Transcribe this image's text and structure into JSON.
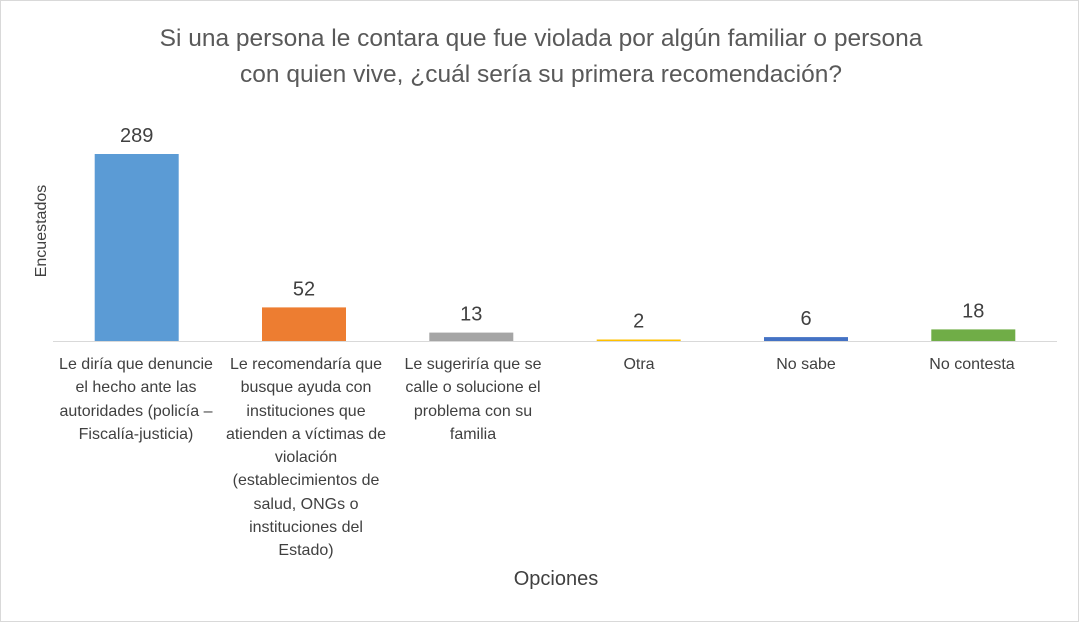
{
  "chart_data": {
    "type": "bar",
    "title_lines": [
      "Si una persona le contara que fue violada por algún familiar o persona",
      "con quien vive, ¿cuál sería su primera recomendación?"
    ],
    "xlabel": "Opciones",
    "ylabel": "Encuestados",
    "ylim": [
      0,
      289
    ],
    "grid": false,
    "legend": "none",
    "categories": [
      "Le diría que denuncie el hecho ante las autoridades (policía – Fiscalía-justicia)",
      "Le recomendaría que busque ayuda con instituciones que atienden a víctimas de violación (establecimientos de salud, ONGs o instituciones del Estado)",
      "Le sugeriría que se calle o solucione el problema con su familia",
      "Otra",
      "No sabe",
      "No contesta"
    ],
    "values": [
      289,
      52,
      13,
      2,
      6,
      18
    ],
    "value_labels": [
      "289",
      "52",
      "13",
      "2",
      "6",
      "18"
    ],
    "colors": [
      "#5b9bd5",
      "#ed7d31",
      "#a5a5a5",
      "#ffc000",
      "#4472c4",
      "#70ad47"
    ]
  }
}
